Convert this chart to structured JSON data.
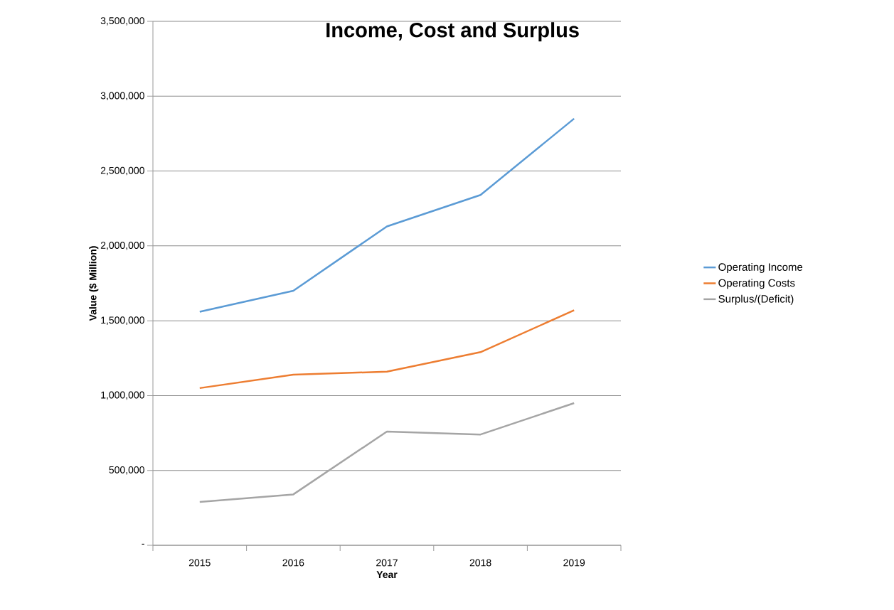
{
  "chart_data": {
    "type": "line",
    "title": "Income, Cost and Surplus",
    "xlabel": "Year",
    "ylabel": "Value  ($ Million)",
    "categories": [
      "2015",
      "2016",
      "2017",
      "2018",
      "2019"
    ],
    "series": [
      {
        "name": "Operating Income",
        "color": "#5b9bd5",
        "values": [
          1560000,
          1700000,
          2130000,
          2340000,
          2850000
        ]
      },
      {
        "name": "Operating Costs",
        "color": "#ed7d31",
        "values": [
          1050000,
          1140000,
          1160000,
          1290000,
          1570000
        ]
      },
      {
        "name": "Surplus/(Deficit)",
        "color": "#a5a5a5",
        "values": [
          290000,
          340000,
          760000,
          740000,
          950000
        ]
      }
    ],
    "ylim": [
      0,
      3500000
    ],
    "yticks": [
      {
        "value": 0,
        "label": "-"
      },
      {
        "value": 500000,
        "label": "500,000"
      },
      {
        "value": 1000000,
        "label": "1,000,000"
      },
      {
        "value": 1500000,
        "label": "1,500,000"
      },
      {
        "value": 2000000,
        "label": "2,000,000"
      },
      {
        "value": 2500000,
        "label": "2,500,000"
      },
      {
        "value": 3000000,
        "label": "3,000,000"
      },
      {
        "value": 3500000,
        "label": "3,500,000"
      }
    ],
    "grid": "y",
    "legend": "right",
    "marker": "none",
    "line_style": "solid"
  }
}
